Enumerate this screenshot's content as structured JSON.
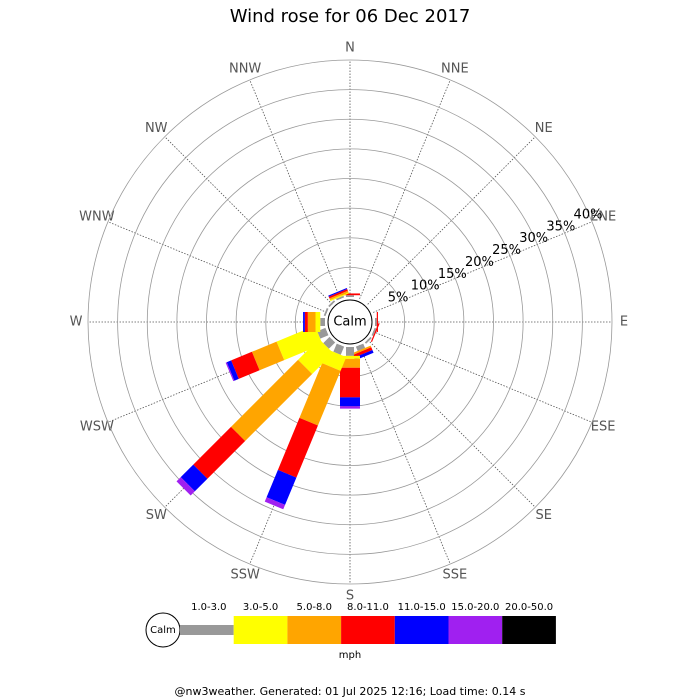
{
  "chart_data": {
    "type": "windrose",
    "title": "Wind rose for 06 Dec 2017",
    "center_label": "Calm",
    "unit": "mph",
    "footer": "@nw3weather. Generated: 01 Jul 2025 12:16; Load time: 0.14 s",
    "directions": [
      "N",
      "NNE",
      "NE",
      "ENE",
      "E",
      "ESE",
      "SE",
      "SSE",
      "S",
      "SSW",
      "SW",
      "WSW",
      "W",
      "WNW",
      "NW",
      "NNW"
    ],
    "rlim": [
      0,
      40
    ],
    "rticks": [
      {
        "value": 5,
        "label": "5%"
      },
      {
        "value": 10,
        "label": "10%"
      },
      {
        "value": 15,
        "label": "15%"
      },
      {
        "value": 20,
        "label": "20%"
      },
      {
        "value": 25,
        "label": "25%"
      },
      {
        "value": 30,
        "label": "30%"
      },
      {
        "value": 35,
        "label": "35%"
      },
      {
        "value": 40,
        "label": "40%"
      }
    ],
    "series": [
      {
        "name": "1.0-3.0",
        "color": "#999999",
        "values": [
          0.3,
          0,
          0,
          0,
          0.3,
          0.3,
          0.3,
          0.8,
          1.5,
          1.5,
          1.5,
          1.5,
          0.8,
          0.3,
          0.3,
          0.3
        ]
      },
      {
        "name": "3.0-5.0",
        "color": "#ffff00",
        "values": [
          0,
          0,
          0,
          0,
          0,
          0,
          0,
          0,
          0.5,
          2.5,
          5,
          7,
          0.8,
          0,
          0,
          0.2
        ]
      },
      {
        "name": "5.0-8.0",
        "color": "#ffa500",
        "values": [
          0,
          0,
          0,
          0,
          0,
          0,
          0,
          0.3,
          1.5,
          10,
          16,
          4.5,
          1.3,
          0,
          0,
          0.3
        ]
      },
      {
        "name": "8.0-11.0",
        "color": "#ff0000",
        "values": [
          0.3,
          0,
          0,
          0,
          0.2,
          0.2,
          0,
          0.5,
          5,
          9.5,
          9,
          3.8,
          0.5,
          0,
          0,
          0.3
        ]
      },
      {
        "name": "11.0-15.0",
        "color": "#0000ff",
        "values": [
          0,
          0,
          0,
          0,
          0,
          0,
          0,
          0.5,
          1.5,
          5,
          3,
          0.8,
          0.3,
          0,
          0,
          0.2
        ]
      },
      {
        "name": "15.0-20.0",
        "color": "#a020f0",
        "values": [
          0,
          0,
          0,
          0,
          0,
          0,
          0,
          0,
          0.4,
          0.8,
          1,
          0.2,
          0,
          0,
          0,
          0
        ]
      },
      {
        "name": "20.0-50.0",
        "color": "#000000",
        "values": [
          0,
          0,
          0,
          0,
          0,
          0,
          0,
          0,
          0,
          0,
          0,
          0,
          0,
          0,
          0,
          0
        ]
      }
    ]
  }
}
